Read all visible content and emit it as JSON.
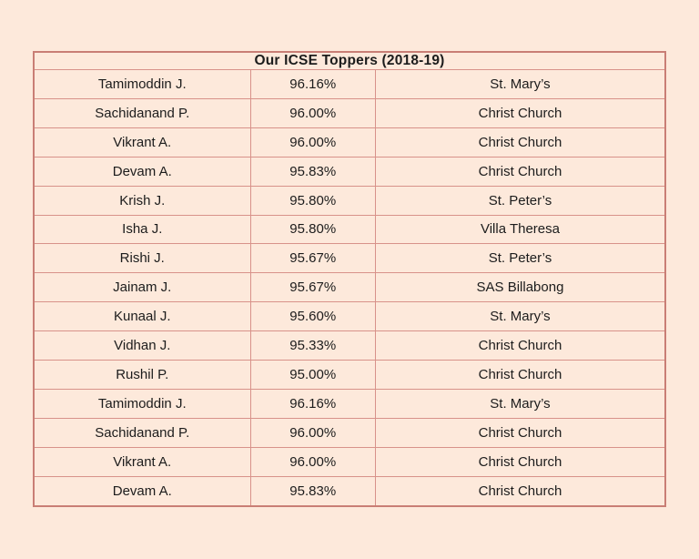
{
  "page": {
    "background_color": "#FDE9DB"
  },
  "table": {
    "title": "Our ICSE Toppers (2018-19)",
    "outer_border_color": "#C97E75",
    "inner_border_color": "#D8928A",
    "text_color": "#1C1C1C"
  },
  "chart_data": {
    "type": "table",
    "title": "Our ICSE Toppers (2018-19)",
    "rows": [
      [
        "Tamimoddin J.",
        "96.16%",
        "St. Mary’s"
      ],
      [
        "Sachidanand P.",
        "96.00%",
        "Christ Church"
      ],
      [
        "Vikrant A.",
        "96.00%",
        "Christ Church"
      ],
      [
        "Devam A.",
        "95.83%",
        "Christ Church"
      ],
      [
        "Krish J.",
        "95.80%",
        "St. Peter’s"
      ],
      [
        "Isha J.",
        "95.80%",
        "Villa Theresa"
      ],
      [
        "Rishi J.",
        "95.67%",
        "St. Peter’s"
      ],
      [
        "Jainam J.",
        "95.67%",
        "SAS Billabong"
      ],
      [
        "Kunaal J.",
        "95.60%",
        "St. Mary’s"
      ],
      [
        "Vidhan J.",
        "95.33%",
        "Christ Church"
      ],
      [
        "Rushil P.",
        "95.00%",
        "Christ Church"
      ],
      [
        "Tamimoddin J.",
        "96.16%",
        "St. Mary’s"
      ],
      [
        "Sachidanand P.",
        "96.00%",
        "Christ Church"
      ],
      [
        "Vikrant A.",
        "96.00%",
        "Christ Church"
      ],
      [
        "Devam A.",
        "95.83%",
        "Christ Church"
      ]
    ]
  }
}
